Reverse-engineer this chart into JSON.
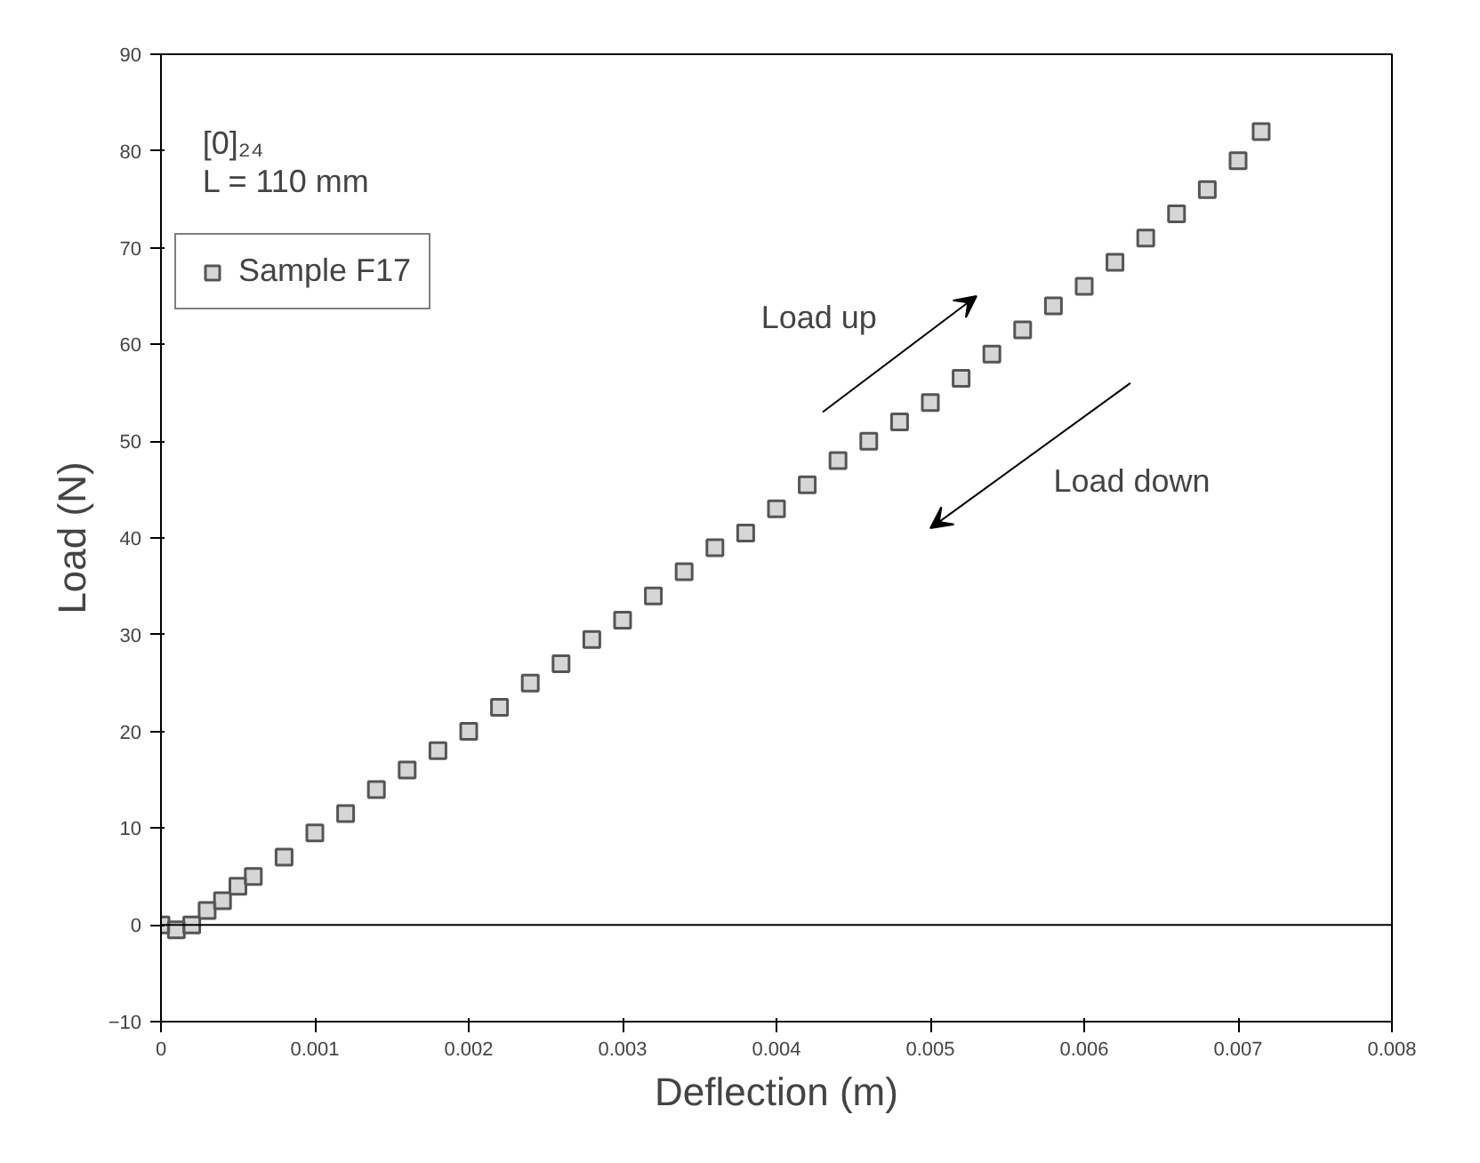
{
  "chart_data": {
    "type": "scatter",
    "xlabel": "Deflection (m)",
    "ylabel": "Load (N)",
    "x": [
      0,
      0.0001,
      0.0002,
      0.0003,
      0.0004,
      0.0005,
      0.0006,
      0.0008,
      0.001,
      0.0012,
      0.0014,
      0.0016,
      0.0018,
      0.002,
      0.0022,
      0.0024,
      0.0026,
      0.0028,
      0.003,
      0.0032,
      0.0034,
      0.0036,
      0.0038,
      0.004,
      0.0042,
      0.0044,
      0.0046,
      0.0048,
      0.005,
      0.0052,
      0.0054,
      0.0056,
      0.0058,
      0.006,
      0.0062,
      0.0064,
      0.0066,
      0.0068,
      0.007,
      0.00715
    ],
    "series": [
      {
        "name": "Sample F17",
        "color": "#555555",
        "values": [
          0,
          -0.5,
          0,
          1.5,
          2.5,
          4,
          5,
          7,
          9.5,
          11.5,
          14,
          16,
          18,
          20,
          22.5,
          25,
          27,
          29.5,
          31.5,
          34,
          36.5,
          39,
          40.5,
          43,
          45.5,
          48,
          50,
          52,
          54,
          56.5,
          59,
          61.5,
          64,
          66,
          68.5,
          71,
          73.5,
          76,
          79,
          82
        ]
      }
    ],
    "marker": "square",
    "grid": false,
    "legend": "top left",
    "xlim": [
      0,
      0.008
    ],
    "xticks": [
      0,
      0.001,
      0.002,
      0.003,
      0.004,
      0.005,
      0.006,
      0.007,
      0.008
    ],
    "ylim": [
      -10,
      90
    ],
    "yticks": [
      -10,
      0,
      10,
      20,
      30,
      40,
      50,
      60,
      70,
      80,
      90
    ],
    "ref_lines": [
      {
        "axis": "y",
        "value": 0,
        "label": null,
        "color": "#000000"
      }
    ],
    "annotations": [
      "[0]₂₄",
      "L = 110 mm",
      "Load up",
      "Load down"
    ]
  }
}
